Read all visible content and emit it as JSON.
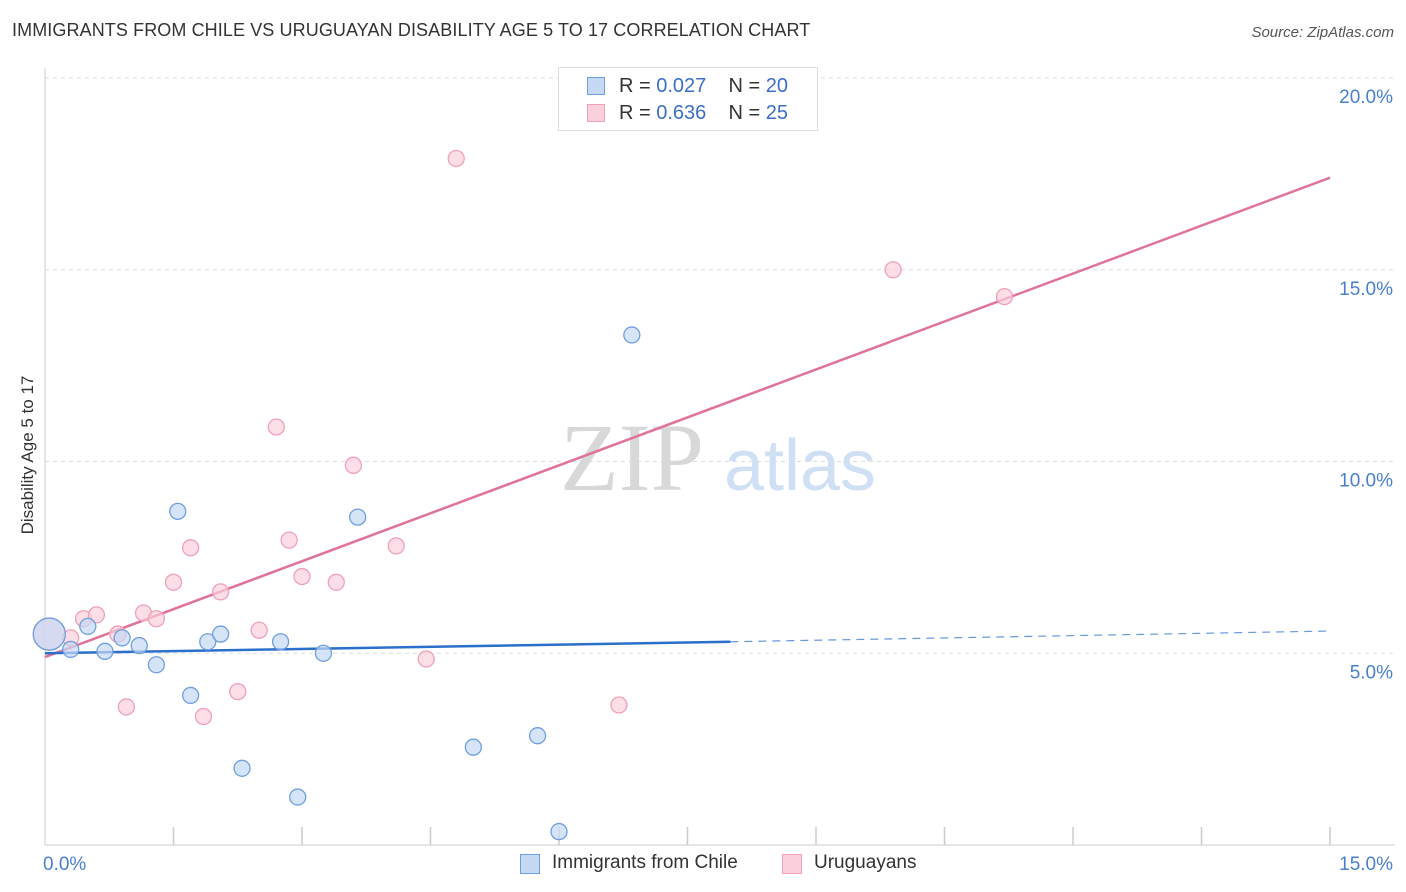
{
  "chart_data": {
    "type": "scatter",
    "title": "IMMIGRANTS FROM CHILE VS URUGUAYAN DISABILITY AGE 5 TO 17 CORRELATION CHART",
    "source": "Source: ZipAtlas.com",
    "xlabel": "",
    "ylabel": "Disability Age 5 to 17",
    "xlim": [
      0,
      15
    ],
    "ylim": [
      0,
      20
    ],
    "x_tick_labels": [
      "0.0%",
      "15.0%"
    ],
    "y_ticks": [
      5,
      10,
      15,
      20
    ],
    "y_tick_labels": [
      "5.0%",
      "10.0%",
      "15.0%",
      "20.0%"
    ],
    "watermark": {
      "left": "ZIP",
      "right": "atlas"
    },
    "legend": {
      "series1": {
        "r_label": "R = ",
        "r_value": "0.027",
        "n_label": "N = ",
        "n_value": "20"
      },
      "series2": {
        "r_label": "R = ",
        "r_value": "0.636",
        "n_label": "N = ",
        "n_value": "25"
      }
    },
    "series": [
      {
        "name": "Immigrants from Chile",
        "color": "#6f9fe0",
        "fill": "#c5d9f5",
        "line_color": "#2b6fcc",
        "trend": {
          "x0": 0,
          "y0": 5.0,
          "x1": 8.0,
          "y1": 5.3,
          "dashed_to_x": 15,
          "dashed_to_y": 5.58
        },
        "points": [
          [
            0.05,
            5.5
          ],
          [
            0.3,
            5.1
          ],
          [
            0.5,
            5.7
          ],
          [
            0.7,
            5.05
          ],
          [
            0.9,
            5.4
          ],
          [
            1.1,
            5.2
          ],
          [
            1.3,
            4.7
          ],
          [
            1.55,
            8.7
          ],
          [
            1.7,
            3.9
          ],
          [
            1.9,
            5.3
          ],
          [
            2.05,
            5.5
          ],
          [
            2.3,
            2.0
          ],
          [
            2.75,
            5.3
          ],
          [
            2.95,
            1.25
          ],
          [
            3.25,
            5.0
          ],
          [
            3.65,
            8.55
          ],
          [
            5.0,
            2.55
          ],
          [
            5.75,
            2.85
          ],
          [
            6.0,
            0.35
          ],
          [
            6.85,
            13.3
          ]
        ]
      },
      {
        "name": "Uruguayans",
        "color": "#f0a0b8",
        "fill": "#f9d0dc",
        "line_color": "#e0739a",
        "trend": {
          "x0": 0,
          "y0": 4.9,
          "x1": 15,
          "y1": 17.4
        },
        "points": [
          [
            0.05,
            5.5
          ],
          [
            0.3,
            5.4
          ],
          [
            0.45,
            5.9
          ],
          [
            0.6,
            6.0
          ],
          [
            0.85,
            5.5
          ],
          [
            0.95,
            3.6
          ],
          [
            1.15,
            6.05
          ],
          [
            1.3,
            5.9
          ],
          [
            1.5,
            6.85
          ],
          [
            1.7,
            7.75
          ],
          [
            1.85,
            3.35
          ],
          [
            2.05,
            6.6
          ],
          [
            2.25,
            4.0
          ],
          [
            2.5,
            5.6
          ],
          [
            2.7,
            10.9
          ],
          [
            2.85,
            7.95
          ],
          [
            3.0,
            7.0
          ],
          [
            3.4,
            6.85
          ],
          [
            3.6,
            9.9
          ],
          [
            4.1,
            7.8
          ],
          [
            4.45,
            4.85
          ],
          [
            4.8,
            17.9
          ],
          [
            6.7,
            3.65
          ],
          [
            9.9,
            15.0
          ],
          [
            11.2,
            14.3
          ]
        ]
      }
    ]
  }
}
